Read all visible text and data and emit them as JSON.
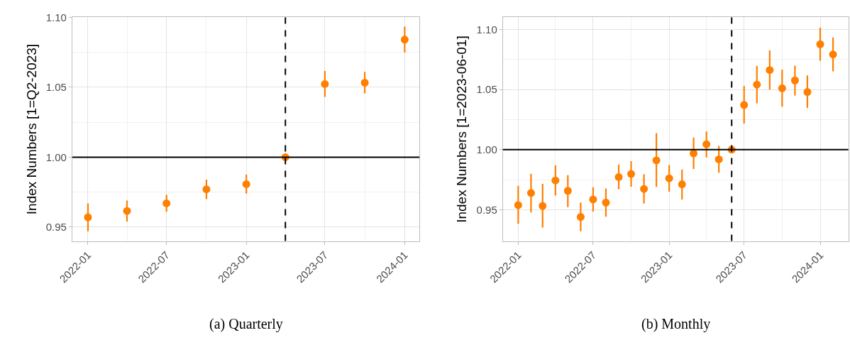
{
  "chart_data": [
    {
      "type": "scatter",
      "ylabel": "Index Numbers [1=Q2-2023]",
      "annotations": [
        "(a) Quarterly"
      ],
      "x": [
        "2022-01-01",
        "2022-04-01",
        "2022-07-01",
        "2022-10-01",
        "2023-01-01",
        "2023-04-01",
        "2023-07-01",
        "2023-10-01",
        "2024-01-01"
      ],
      "series": [
        {
          "color": "#ff7f00",
          "values": [
            0.957,
            0.9615,
            0.967,
            0.977,
            0.9807,
            1.0,
            1.0523,
            1.0533,
            1.0841
          ],
          "errors": [
            [
              0.947,
              0.967
            ],
            [
              0.954,
              0.969
            ],
            [
              0.961,
              0.973
            ],
            [
              0.97,
              0.984
            ],
            [
              0.974,
              0.9875
            ],
            null,
            [
              1.0431,
              1.0616
            ],
            [
              1.0457,
              1.061
            ],
            [
              1.0749,
              1.0934
            ]
          ]
        }
      ],
      "xlim": [
        "2021-11-26",
        "2024-02-04"
      ],
      "xticks": [
        "2022-01",
        "2022-07",
        "2023-01",
        "2023-07",
        "2024-01"
      ],
      "ylim": [
        0.94,
        1.1
      ],
      "yticks": [
        {
          "value": 0.95,
          "label": "0.95"
        },
        {
          "value": 1.0,
          "label": "1.00"
        },
        {
          "value": 1.05,
          "label": "1.05"
        },
        {
          "value": 1.1,
          "label": "1.10"
        }
      ],
      "ref_lines": [
        {
          "axis": "y",
          "value": 1.0,
          "color": "#000000",
          "line_style": "solid"
        },
        {
          "axis": "x",
          "value": "2023-04-01",
          "color": "#000000",
          "line_style": "dashed"
        }
      ],
      "grid": true,
      "marker": "circle"
    },
    {
      "type": "scatter",
      "ylabel": "Index Numbers [1=2023-06-01]",
      "annotations": [
        "(b) Monthly"
      ],
      "x": [
        "2022-01-01",
        "2022-02-01",
        "2022-03-01",
        "2022-04-01",
        "2022-05-01",
        "2022-06-01",
        "2022-07-01",
        "2022-08-01",
        "2022-09-01",
        "2022-10-01",
        "2022-11-01",
        "2022-12-01",
        "2023-01-01",
        "2023-02-01",
        "2023-03-01",
        "2023-04-01",
        "2023-05-01",
        "2023-06-01",
        "2023-07-01",
        "2023-08-01",
        "2023-09-01",
        "2023-10-01",
        "2023-11-01",
        "2023-12-01",
        "2024-01-01",
        "2024-02-01"
      ],
      "series": [
        {
          "color": "#ff7f00",
          "values": [
            0.9539,
            0.964,
            0.9532,
            0.9744,
            0.9658,
            0.9441,
            0.9586,
            0.956,
            0.9772,
            0.9798,
            0.9673,
            0.9911,
            0.9762,
            0.9712,
            0.9969,
            1.0045,
            0.992,
            1.0,
            1.0372,
            1.0541,
            1.0662,
            1.0511,
            1.0576,
            1.048,
            1.0877,
            1.0792
          ],
          "errors": [
            [
              0.9383,
              0.97
            ],
            [
              0.9478,
              0.98
            ],
            [
              0.9353,
              0.9716
            ],
            [
              0.962,
              0.987
            ],
            [
              0.9523,
              0.9788
            ],
            [
              0.9322,
              0.956
            ],
            [
              0.9485,
              0.9688
            ],
            [
              0.9443,
              0.9677
            ],
            [
              0.9671,
              0.9876
            ],
            [
              0.9692,
              0.9904
            ],
            [
              0.9552,
              0.9796
            ],
            [
              0.969,
              1.0138
            ],
            [
              0.9651,
              0.9872
            ],
            [
              0.9586,
              0.9835
            ],
            [
              0.984,
              1.0101
            ],
            [
              0.9935,
              1.0151
            ],
            [
              0.9809,
              1.0032
            ],
            null,
            [
              1.0218,
              1.053
            ],
            [
              1.0385,
              1.0697
            ],
            [
              1.05,
              1.0825
            ],
            [
              1.0357,
              1.0664
            ],
            [
              1.045,
              1.0699
            ],
            [
              1.0348,
              1.0617
            ],
            [
              1.074,
              1.1015
            ],
            [
              1.0651,
              1.0933
            ]
          ]
        }
      ],
      "xlim": [
        "2021-11-25",
        "2024-03-09"
      ],
      "xticks": [
        "2022-01",
        "2022-07",
        "2023-01",
        "2023-07",
        "2024-01"
      ],
      "ylim": [
        0.924,
        1.11
      ],
      "yticks": [
        0.95,
        {
          "value": 1.0,
          "label": "1.00"
        },
        1.05,
        {
          "value": 1.1,
          "label": "1.10"
        }
      ],
      "ref_lines": [
        {
          "axis": "y",
          "value": 1.0,
          "color": "#000000",
          "line_style": "solid"
        },
        {
          "axis": "x",
          "value": "2023-06-01",
          "color": "#000000",
          "line_style": "dashed"
        }
      ],
      "grid": true,
      "marker": "circle"
    }
  ]
}
